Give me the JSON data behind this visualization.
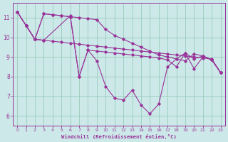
{
  "bg_color": "#cce8e8",
  "line_color": "#993399",
  "grid_color": "#99ccbb",
  "xlabel": "Windchill (Refroidissement éolien,°C)",
  "xlim": [
    -0.5,
    23.5
  ],
  "ylim": [
    5.5,
    11.75
  ],
  "xticks": [
    0,
    1,
    2,
    3,
    4,
    5,
    6,
    7,
    8,
    9,
    10,
    11,
    12,
    13,
    14,
    15,
    16,
    17,
    18,
    19,
    20,
    21,
    22,
    23
  ],
  "yticks": [
    6,
    7,
    8,
    9,
    10,
    11
  ],
  "line1_x": [
    0,
    1,
    2,
    3,
    4,
    5,
    6,
    7,
    8,
    9,
    10,
    11,
    12,
    13,
    14,
    15,
    16,
    17,
    18,
    19,
    20,
    21,
    22,
    23
  ],
  "line1_y": [
    11.3,
    10.6,
    9.9,
    9.85,
    9.8,
    9.75,
    9.7,
    9.65,
    9.6,
    9.55,
    9.5,
    9.45,
    9.4,
    9.35,
    9.3,
    9.25,
    9.2,
    9.15,
    9.1,
    9.05,
    9.0,
    8.95,
    8.9,
    8.2
  ],
  "line2_x": [
    0,
    1,
    2,
    3,
    6,
    7,
    8,
    9,
    10,
    11,
    12,
    13,
    14,
    15,
    16,
    17,
    18,
    19,
    20,
    21,
    22,
    23
  ],
  "line2_y": [
    11.3,
    10.6,
    9.9,
    9.85,
    11.1,
    8.0,
    9.35,
    9.3,
    9.25,
    9.2,
    9.15,
    9.1,
    9.05,
    9.0,
    8.95,
    8.85,
    8.5,
    9.2,
    8.9,
    9.05,
    8.85,
    8.2
  ],
  "line3_x": [
    0,
    1,
    2,
    3,
    4,
    5,
    6,
    7,
    8,
    9,
    10,
    11,
    12,
    13,
    14,
    15,
    16,
    17,
    18,
    19,
    20,
    21,
    22,
    23
  ],
  "line3_y": [
    11.3,
    10.6,
    9.9,
    11.2,
    11.15,
    11.1,
    11.05,
    8.0,
    9.35,
    8.8,
    7.5,
    6.9,
    6.8,
    7.3,
    6.55,
    6.1,
    6.6,
    8.5,
    8.9,
    9.2,
    8.4,
    9.0,
    8.85,
    8.2
  ],
  "line4_x": [
    0,
    1,
    2,
    3,
    4,
    5,
    6,
    7,
    8,
    9,
    10,
    11,
    12,
    13,
    14,
    15,
    16,
    17,
    18,
    19,
    20,
    21,
    22,
    23
  ],
  "line4_y": [
    11.3,
    10.6,
    9.9,
    11.2,
    11.15,
    11.1,
    11.05,
    11.0,
    10.95,
    10.9,
    10.4,
    10.1,
    9.9,
    9.7,
    9.5,
    9.3,
    9.1,
    9.0,
    8.9,
    8.8,
    9.15,
    9.05,
    8.85,
    8.2
  ]
}
